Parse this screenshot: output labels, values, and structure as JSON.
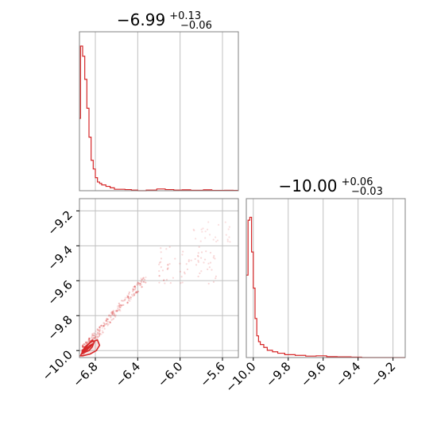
{
  "colors": {
    "main": "#d62728",
    "grid": "#c0c0c0",
    "frame": "#808080"
  },
  "chart_data": [
    {
      "type": "histogram",
      "panel": "top-left",
      "title": {
        "value": "−6.99",
        "plus": "+0.13",
        "minus": "−0.06"
      },
      "xlim": [
        -6.95,
        -5.45
      ],
      "xticks": [
        -6.8,
        -6.4,
        -6.0,
        -5.6
      ],
      "grid": true,
      "bins": [
        {
          "x": -6.95,
          "h": 0.5
        },
        {
          "x": -6.94,
          "h": 1.0
        },
        {
          "x": -6.92,
          "h": 0.93
        },
        {
          "x": -6.9,
          "h": 0.77
        },
        {
          "x": -6.88,
          "h": 0.57
        },
        {
          "x": -6.86,
          "h": 0.37
        },
        {
          "x": -6.84,
          "h": 0.21
        },
        {
          "x": -6.82,
          "h": 0.15
        },
        {
          "x": -6.8,
          "h": 0.09
        },
        {
          "x": -6.78,
          "h": 0.06
        },
        {
          "x": -6.76,
          "h": 0.05
        },
        {
          "x": -6.74,
          "h": 0.04
        },
        {
          "x": -6.7,
          "h": 0.03
        },
        {
          "x": -6.66,
          "h": 0.02
        },
        {
          "x": -6.62,
          "h": 0.01
        },
        {
          "x": -6.52,
          "h": 0.008
        },
        {
          "x": -6.46,
          "h": 0.004
        },
        {
          "x": -6.4,
          "h": 0.0
        },
        {
          "x": -6.32,
          "h": 0.004
        },
        {
          "x": -6.22,
          "h": 0.012
        },
        {
          "x": -6.14,
          "h": 0.008
        },
        {
          "x": -6.06,
          "h": 0.004
        },
        {
          "x": -5.98,
          "h": 0.006
        },
        {
          "x": -5.9,
          "h": 0.003
        },
        {
          "x": -5.78,
          "h": 0.006
        },
        {
          "x": -5.7,
          "h": 0.002
        },
        {
          "x": -5.58,
          "h": 0.003
        },
        {
          "x": -5.5,
          "h": 0.002
        }
      ],
      "bin_end": -5.45
    },
    {
      "type": "scatter",
      "panel": "bottom-left",
      "xlim": [
        -6.95,
        -5.45
      ],
      "ylim": [
        -10.04,
        -9.13
      ],
      "xticks": [
        -6.8,
        -6.4,
        -6.0,
        -5.6
      ],
      "yticks": [
        -10.0,
        -9.8,
        -9.6,
        -9.4,
        -9.2
      ],
      "grid": true,
      "contours": [
        {
          "x": [
            -6.93,
            -6.9,
            -6.86,
            -6.83,
            -6.81,
            -6.83,
            -6.86,
            -6.9,
            -6.93
          ],
          "y": [
            -10.02,
            -10.01,
            -10.0,
            -9.98,
            -9.95,
            -9.94,
            -9.96,
            -9.99,
            -10.02
          ]
        },
        {
          "x": [
            -6.93,
            -6.89,
            -6.85,
            -6.82,
            -6.85,
            -6.89,
            -6.93
          ],
          "y": [
            -10.01,
            -10.0,
            -9.98,
            -9.96,
            -9.97,
            -9.99,
            -10.01
          ]
        },
        {
          "x": [
            -6.93,
            -6.89,
            -6.86,
            -6.89,
            -6.93
          ],
          "y": [
            -10.0,
            -9.99,
            -9.98,
            -9.99,
            -10.0
          ]
        },
        {
          "x": [
            -6.92,
            -6.85,
            -6.79,
            -6.76,
            -6.78,
            -6.84,
            -6.9,
            -6.94
          ],
          "y": [
            -10.03,
            -10.02,
            -10.0,
            -9.97,
            -9.94,
            -9.95,
            -9.98,
            -10.03
          ]
        }
      ]
    },
    {
      "type": "histogram",
      "panel": "bottom-right",
      "title": {
        "value": "−10.00",
        "plus": "+0.06",
        "minus": "−0.03"
      },
      "xlim": [
        -10.04,
        -9.13
      ],
      "xticks": [
        -10.0,
        -9.8,
        -9.6,
        -9.4,
        -9.2
      ],
      "grid": true,
      "bins": [
        {
          "x": -10.04,
          "h": 0.57
        },
        {
          "x": -10.03,
          "h": 0.95
        },
        {
          "x": -10.02,
          "h": 0.97
        },
        {
          "x": -10.01,
          "h": 0.73
        },
        {
          "x": -10.0,
          "h": 0.48
        },
        {
          "x": -9.99,
          "h": 0.27
        },
        {
          "x": -9.98,
          "h": 0.15
        },
        {
          "x": -9.97,
          "h": 0.11
        },
        {
          "x": -9.96,
          "h": 0.09
        },
        {
          "x": -9.94,
          "h": 0.07
        },
        {
          "x": -9.92,
          "h": 0.05
        },
        {
          "x": -9.89,
          "h": 0.04
        },
        {
          "x": -9.86,
          "h": 0.03
        },
        {
          "x": -9.82,
          "h": 0.02
        },
        {
          "x": -9.76,
          "h": 0.015
        },
        {
          "x": -9.7,
          "h": 0.01
        },
        {
          "x": -9.64,
          "h": 0.012
        },
        {
          "x": -9.58,
          "h": 0.006
        },
        {
          "x": -9.52,
          "h": 0.005
        },
        {
          "x": -9.44,
          "h": 0.003
        },
        {
          "x": -9.38,
          "h": 0.0
        }
      ],
      "bin_end": -9.13
    }
  ]
}
